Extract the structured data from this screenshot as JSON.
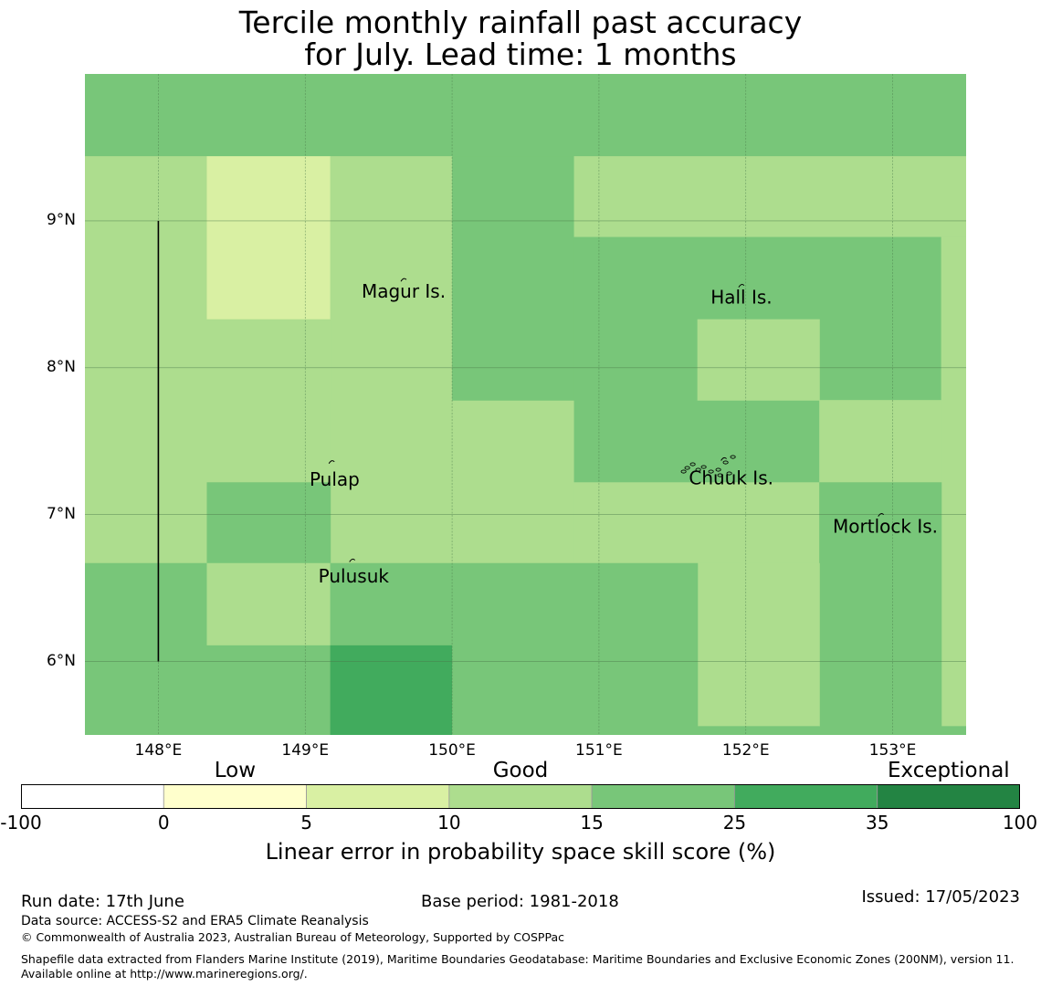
{
  "title": {
    "line1": "Tercile monthly rainfall past accuracy",
    "line2": "for July. Lead time: 1 months"
  },
  "map": {
    "lon_range": [
      147.5,
      153.5
    ],
    "lat_range": [
      5.5,
      10.0
    ],
    "gridlines": true,
    "lat_ticks": [
      {
        "value": 9,
        "label": "9°N"
      },
      {
        "value": 8,
        "label": "8°N"
      },
      {
        "value": 7,
        "label": "7°N"
      },
      {
        "value": 6,
        "label": "6°N"
      }
    ],
    "lon_ticks": [
      {
        "value": 148,
        "label": "148°E"
      },
      {
        "value": 149,
        "label": "149°E"
      },
      {
        "value": 150,
        "label": "150°E"
      },
      {
        "value": 151,
        "label": "151°E"
      },
      {
        "value": 152,
        "label": "152°E"
      },
      {
        "value": 153,
        "label": "153°E"
      }
    ],
    "cells": [
      {
        "lon0": 147.5,
        "lon1": 153.5,
        "lat0": 9.44,
        "lat1": 10.0,
        "score": 20
      },
      {
        "lon0": 147.5,
        "lon1": 148.33,
        "lat0": 6.67,
        "lat1": 9.44,
        "score": 12
      },
      {
        "lon0": 148.33,
        "lon1": 149.17,
        "lat0": 8.33,
        "lat1": 9.44,
        "score": 7
      },
      {
        "lon0": 149.17,
        "lon1": 150.0,
        "lat0": 7.78,
        "lat1": 9.44,
        "score": 12
      },
      {
        "lon0": 148.33,
        "lon1": 149.17,
        "lat0": 7.22,
        "lat1": 8.33,
        "score": 12
      },
      {
        "lon0": 149.17,
        "lon1": 150.83,
        "lat0": 6.67,
        "lat1": 7.78,
        "score": 12
      },
      {
        "lon0": 150.0,
        "lon1": 150.83,
        "lat0": 7.78,
        "lat1": 9.44,
        "score": 20
      },
      {
        "lon0": 150.83,
        "lon1": 153.5,
        "lat0": 8.89,
        "lat1": 9.44,
        "score": 12
      },
      {
        "lon0": 150.83,
        "lon1": 153.33,
        "lat0": 7.22,
        "lat1": 8.89,
        "score": 20
      },
      {
        "lon0": 153.33,
        "lon1": 153.5,
        "lat0": 5.56,
        "lat1": 8.89,
        "score": 12
      },
      {
        "lon0": 151.67,
        "lon1": 152.5,
        "lat0": 7.78,
        "lat1": 8.33,
        "score": 12
      },
      {
        "lon0": 152.5,
        "lon1": 153.33,
        "lat0": 7.22,
        "lat1": 7.78,
        "score": 12
      },
      {
        "lon0": 150.83,
        "lon1": 152.5,
        "lat0": 6.67,
        "lat1": 7.22,
        "score": 12
      },
      {
        "lon0": 148.33,
        "lon1": 149.17,
        "lat0": 6.67,
        "lat1": 7.22,
        "score": 20
      },
      {
        "lon0": 152.5,
        "lon1": 153.33,
        "lat0": 5.5,
        "lat1": 7.22,
        "score": 20
      },
      {
        "lon0": 151.67,
        "lon1": 152.5,
        "lat0": 5.56,
        "lat1": 6.67,
        "score": 12
      },
      {
        "lon0": 151.67,
        "lon1": 152.5,
        "lat0": 5.5,
        "lat1": 5.56,
        "score": 20
      },
      {
        "lon0": 153.33,
        "lon1": 153.5,
        "lat0": 5.5,
        "lat1": 5.56,
        "score": 20
      },
      {
        "lon0": 147.5,
        "lon1": 148.33,
        "lat0": 5.5,
        "lat1": 6.67,
        "score": 20
      },
      {
        "lon0": 148.33,
        "lon1": 149.17,
        "lat0": 6.11,
        "lat1": 6.67,
        "score": 12
      },
      {
        "lon0": 148.33,
        "lon1": 149.17,
        "lat0": 5.5,
        "lat1": 6.11,
        "score": 20
      },
      {
        "lon0": 149.17,
        "lon1": 150.0,
        "lat0": 6.11,
        "lat1": 6.67,
        "score": 20
      },
      {
        "lon0": 149.17,
        "lon1": 150.0,
        "lat0": 5.5,
        "lat1": 6.11,
        "score": 30
      },
      {
        "lon0": 150.0,
        "lon1": 151.67,
        "lat0": 5.5,
        "lat1": 6.67,
        "score": 20
      }
    ],
    "boundary_line": {
      "lon": 148.0,
      "lat0": 6.0,
      "lat1": 9.0
    },
    "places": [
      {
        "name": "Magur Is.",
        "label_lon": 149.67,
        "label_lat": 8.52,
        "mark_lon": 149.67,
        "mark_lat": 8.6
      },
      {
        "name": "Hall Is.",
        "label_lon": 151.97,
        "label_lat": 8.48,
        "mark_lon": 151.97,
        "mark_lat": 8.56
      },
      {
        "name": "Pulap",
        "label_lon": 149.2,
        "label_lat": 7.24,
        "mark_lon": 149.18,
        "mark_lat": 7.36
      },
      {
        "name": "Chuuk Is.",
        "label_lon": 151.9,
        "label_lat": 7.25,
        "mark_lon": 151.85,
        "mark_lat": 7.38
      },
      {
        "name": "Mortlock Is.",
        "label_lon": 152.95,
        "label_lat": 6.92,
        "mark_lon": 152.92,
        "mark_lat": 7.0
      },
      {
        "name": "Pulusuk",
        "label_lon": 149.33,
        "label_lat": 6.58,
        "mark_lon": 149.32,
        "mark_lat": 6.69
      }
    ]
  },
  "colorbar": {
    "categories": [
      {
        "label": "Low",
        "at": 1.5
      },
      {
        "label": "Good",
        "at": 3.5
      },
      {
        "label": "Exceptional",
        "at": 6.5
      }
    ],
    "ticks": [
      "-100",
      "0",
      "5",
      "10",
      "15",
      "25",
      "35",
      "100"
    ],
    "bins": [
      {
        "from": -100,
        "to": 0,
        "color": "#ffffff"
      },
      {
        "from": 0,
        "to": 5,
        "color": "#ffffcc"
      },
      {
        "from": 5,
        "to": 10,
        "color": "#d9f0a3"
      },
      {
        "from": 10,
        "to": 15,
        "color": "#addd8e"
      },
      {
        "from": 15,
        "to": 25,
        "color": "#78c679"
      },
      {
        "from": 25,
        "to": 35,
        "color": "#41ab5d"
      },
      {
        "from": 35,
        "to": 100,
        "color": "#238443"
      }
    ],
    "label": "Linear error in probability space skill score (%)"
  },
  "footer": {
    "run_date": "Run date: 17th June",
    "base_period": "Base period: 1981-2018",
    "issued": "Issued: 17/05/2023",
    "data_source": "Data source: ACCESS-S2 and ERA5 Climate Reanalysis",
    "copyright": "© Commonwealth of Australia 2023, Australian Bureau of Meteorology, Supported by COSPPac",
    "shapefile": "Shapefile data extracted from Flanders Marine Institute (2019), Maritime Boundaries Geodatabase: Maritime Boundaries and Exclusive Economic Zones (200NM), version 11. Available online at http://www.marineregions.org/."
  }
}
